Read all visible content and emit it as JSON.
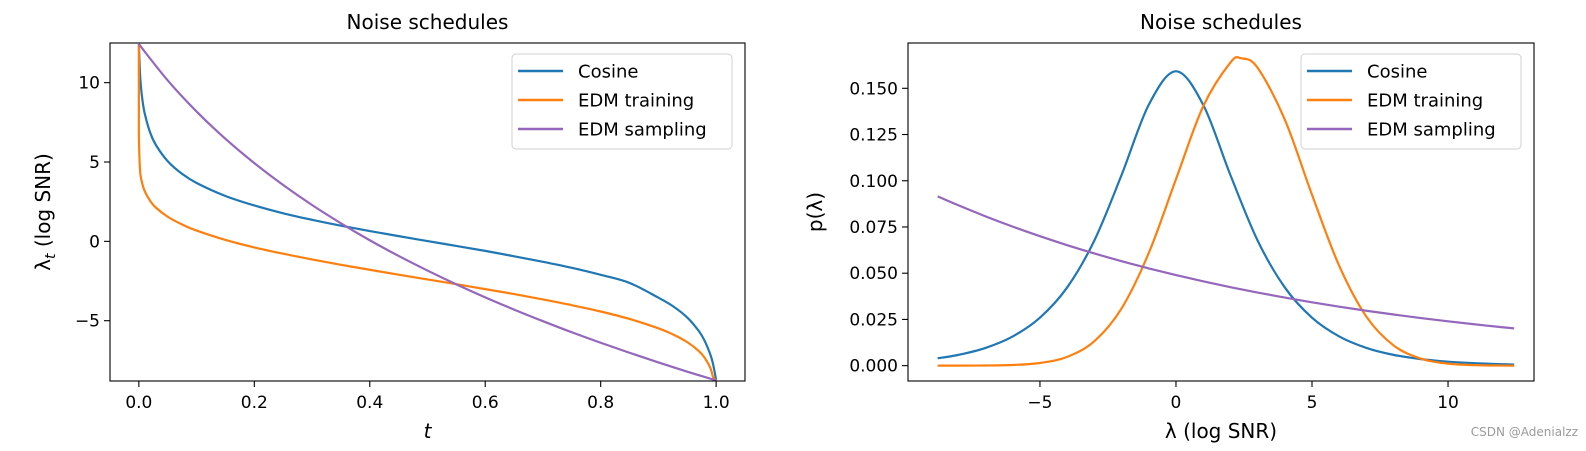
{
  "watermark": "CSDN @Adenialzz",
  "chart_data": [
    {
      "type": "line",
      "title": "Noise schedules",
      "xlabel": "t",
      "ylabel": "λ_t (log SNR)",
      "xlim": [
        -0.05,
        1.05
      ],
      "ylim": [
        -8.8,
        12.5
      ],
      "xticks": [
        0.0,
        0.2,
        0.4,
        0.6,
        0.8,
        1.0
      ],
      "xtick_labels": [
        "0.0",
        "0.2",
        "0.4",
        "0.6",
        "0.8",
        "1.0"
      ],
      "yticks": [
        -5,
        0,
        5,
        10
      ],
      "ytick_labels": [
        "−5",
        "0",
        "5",
        "10"
      ],
      "grid": false,
      "legend": "top-right",
      "series": [
        {
          "name": "Cosine",
          "color": "#1f77b4",
          "x": [
            0,
            0.002,
            0.005,
            0.01,
            0.02,
            0.03,
            0.05,
            0.075,
            0.1,
            0.15,
            0.2,
            0.25,
            0.3,
            0.35,
            0.4,
            0.45,
            0.5,
            0.55,
            0.6,
            0.65,
            0.7,
            0.75,
            0.8,
            0.85,
            0.9,
            0.925,
            0.95,
            0.97,
            0.98,
            0.99,
            0.995,
            1.0
          ],
          "y": [
            12.43,
            10.54,
            9.25,
            8.08,
            6.81,
            6.04,
            5.05,
            4.25,
            3.68,
            2.86,
            2.26,
            1.77,
            1.36,
            0.99,
            0.65,
            0.33,
            0.02,
            -0.29,
            -0.6,
            -0.94,
            -1.29,
            -1.67,
            -2.11,
            -2.62,
            -3.55,
            -4.08,
            -4.8,
            -5.65,
            -6.26,
            -7.14,
            -7.79,
            -8.75
          ]
        },
        {
          "name": "EDM training",
          "color": "#ff7f0e",
          "x": [
            0,
            1e-07,
            1e-05,
            0.0001,
            0.002,
            0.005,
            0.01,
            0.02,
            0.03,
            0.05,
            0.075,
            0.1,
            0.15,
            0.2,
            0.25,
            0.3,
            0.35,
            0.4,
            0.45,
            0.5,
            0.55,
            0.6,
            0.65,
            0.7,
            0.75,
            0.8,
            0.85,
            0.9,
            0.925,
            0.95,
            0.97,
            0.98,
            0.99,
            0.995,
            1.0
          ],
          "y": [
            12.43,
            10.08,
            7.84,
            6.53,
            4.51,
            3.78,
            3.18,
            2.53,
            2.11,
            1.55,
            1.06,
            0.68,
            0.09,
            -0.38,
            -0.78,
            -1.14,
            -1.48,
            -1.79,
            -2.1,
            -2.4,
            -2.7,
            -3.01,
            -3.32,
            -3.66,
            -4.02,
            -4.42,
            -4.89,
            -5.48,
            -5.86,
            -6.35,
            -6.91,
            -7.33,
            -7.98,
            -8.58,
            -8.76
          ]
        },
        {
          "name": "EDM sampling",
          "color": "#9467bd",
          "x": [
            0,
            0.05,
            0.1,
            0.15,
            0.2,
            0.25,
            0.3,
            0.35,
            0.4,
            0.45,
            0.5,
            0.55,
            0.6,
            0.65,
            0.7,
            0.75,
            0.8,
            0.85,
            0.9,
            0.95,
            1.0
          ],
          "y": [
            12.43,
            10.14,
            8.18,
            6.46,
            4.93,
            3.55,
            2.29,
            1.14,
            0.07,
            -0.92,
            -1.84,
            -2.71,
            -3.53,
            -4.3,
            -5.03,
            -5.73,
            -6.39,
            -7.02,
            -7.63,
            -8.21,
            -8.76
          ]
        }
      ]
    },
    {
      "type": "line",
      "title": "Noise schedules",
      "xlabel": "λ (log SNR)",
      "ylabel": "p(λ)",
      "xlim": [
        -9.85,
        13.16
      ],
      "ylim": [
        -0.0083,
        0.1745
      ],
      "xticks": [
        -5,
        0,
        5,
        10
      ],
      "xtick_labels": [
        "−5",
        "0",
        "5",
        "10"
      ],
      "yticks": [
        0.0,
        0.025,
        0.05,
        0.075,
        0.1,
        0.125,
        0.15
      ],
      "ytick_labels": [
        "0.000",
        "0.025",
        "0.050",
        "0.075",
        "0.100",
        "0.125",
        "0.150"
      ],
      "grid": false,
      "legend": "top-right",
      "series": [
        {
          "name": "Cosine",
          "color": "#1f77b4",
          "x": [
            -8.76,
            -8,
            -7,
            -6,
            -5,
            -4,
            -3,
            -2,
            -1,
            0,
            1,
            2,
            3,
            4,
            5,
            6,
            7,
            8,
            9,
            10,
            11,
            12,
            12.43
          ],
          "y": [
            0.00399,
            0.00583,
            0.0096,
            0.01581,
            0.02595,
            0.0423,
            0.0677,
            0.1031,
            0.1411,
            0.1592,
            0.1411,
            0.1031,
            0.0677,
            0.0423,
            0.02595,
            0.01581,
            0.0096,
            0.00583,
            0.00354,
            0.00214,
            0.0013,
            0.00079,
            0.00064
          ]
        },
        {
          "name": "EDM training",
          "color": "#ff7f0e",
          "x": [
            -8.76,
            -8,
            -7,
            -6,
            -5,
            -4,
            -3,
            -2,
            -1,
            0,
            1,
            2,
            2.4,
            3,
            4,
            5,
            6,
            7,
            8,
            9,
            10,
            11,
            12,
            12.43
          ],
          "y": [
            0.0,
            1e-05,
            8e-05,
            0.00036,
            0.00143,
            0.00475,
            0.01323,
            0.03095,
            0.06094,
            0.10082,
            0.14023,
            0.16394,
            0.16623,
            0.16112,
            0.1331,
            0.09244,
            0.05397,
            0.02648,
            0.01093,
            0.00379,
            0.0011,
            0.00027,
            6e-05,
            3e-05
          ]
        },
        {
          "name": "EDM sampling",
          "color": "#9467bd",
          "x": [
            -8.76,
            -8,
            -7,
            -6,
            -5,
            -4,
            -3,
            -2,
            -1,
            0,
            1,
            2,
            3,
            4,
            5,
            6,
            7,
            8,
            9,
            10,
            11,
            12,
            12.43
          ],
          "y": [
            0.09157,
            0.08673,
            0.08075,
            0.07518,
            0.07,
            0.06517,
            0.06068,
            0.0565,
            0.05261,
            0.04898,
            0.0456,
            0.04246,
            0.03953,
            0.03681,
            0.03427,
            0.0319,
            0.0297,
            0.02766,
            0.02575,
            0.02397,
            0.02232,
            0.02078,
            0.02015
          ]
        }
      ]
    }
  ]
}
